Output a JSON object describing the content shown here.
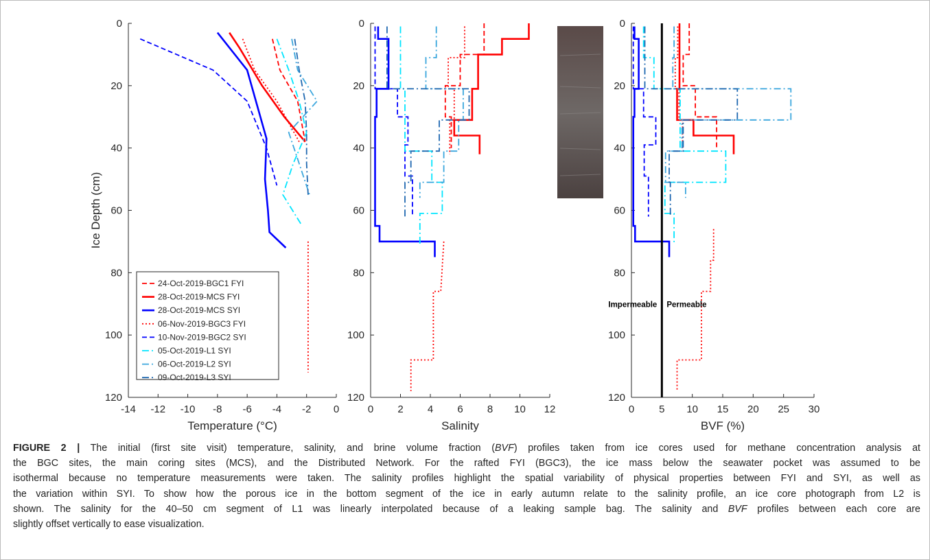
{
  "chart_data": [
    {
      "type": "line",
      "xlabel": "Temperature (°C)",
      "ylabel": "Ice Depth (cm)",
      "xlim": [
        -14,
        0
      ],
      "xticks": [
        -14,
        -12,
        -10,
        -8,
        -6,
        -4,
        -2,
        0
      ],
      "ylim": [
        0,
        120
      ],
      "yticks": [
        0,
        20,
        40,
        60,
        80,
        100,
        120
      ],
      "yreverse": true,
      "legend": "lower left",
      "series": [
        {
          "name": "24-Oct-2019-BGC1 FYI",
          "color": "#ff0000",
          "linestyle": "dash",
          "depth": [
            5,
            15,
            25,
            38
          ],
          "values": [
            -4.3,
            -3.8,
            -2.6,
            -2.1
          ]
        },
        {
          "name": "28-Oct-2019-MCS FYI",
          "color": "#ff0000",
          "linestyle": "solid",
          "depth": [
            3,
            8,
            20,
            30,
            38
          ],
          "values": [
            -7.2,
            -6.5,
            -5,
            -3.5,
            -2.1
          ]
        },
        {
          "name": "28-Oct-2019-MCS SYI",
          "color": "#0000ff",
          "linestyle": "solid",
          "depth": [
            3,
            15,
            37,
            50,
            60,
            67,
            72
          ],
          "values": [
            -8,
            -6,
            -4.7,
            -4.8,
            -4.6,
            -4.5,
            -3.4
          ]
        },
        {
          "name": "06-Nov-2019-BGC3 FYI",
          "color": "#ff0000",
          "linestyle": "dot",
          "depth": [
            5,
            15,
            25,
            38,
            null,
            70,
            112
          ],
          "values": [
            -6.3,
            -5.5,
            -4,
            -2.5,
            null,
            -1.9,
            -1.9
          ]
        },
        {
          "name": "10-Nov-2019-BGC2 SYI",
          "color": "#0000ff",
          "linestyle": "dash",
          "depth": [
            5,
            15,
            25,
            40,
            52
          ],
          "values": [
            -13.2,
            -8.3,
            -6,
            -4.7,
            -4
          ]
        },
        {
          "name": "05-Oct-2019-L1 SYI",
          "color": "#00e5ff",
          "linestyle": "dashdot",
          "depth": [
            5,
            15,
            25,
            35,
            45,
            55,
            65
          ],
          "values": [
            -4,
            -3.2,
            -2.5,
            -2,
            -2.9,
            -3.6,
            -2.3
          ]
        },
        {
          "name": "06-Oct-2019-L2 SYI",
          "color": "#3aa6dd",
          "linestyle": "dashdot",
          "depth": [
            5,
            15,
            25,
            35,
            45,
            55
          ],
          "values": [
            -3,
            -2.6,
            -1.3,
            -3.2,
            -2.5,
            -1.8
          ]
        },
        {
          "name": "09-Oct-2019-L3 SYI",
          "color": "#1f68b0",
          "linestyle": "dashdot",
          "depth": [
            5,
            15,
            25,
            35,
            45,
            55
          ],
          "values": [
            -2.8,
            -2.5,
            -2.1,
            -2,
            -2,
            -1.9
          ]
        }
      ]
    },
    {
      "type": "line",
      "xlabel": "Salinity",
      "xlim": [
        0,
        12
      ],
      "xticks": [
        0,
        2,
        4,
        6,
        8,
        10,
        12
      ],
      "ylim": [
        0,
        120
      ],
      "yticks": [
        0,
        20,
        40,
        60,
        80,
        100,
        120
      ],
      "yreverse": true,
      "series": [
        {
          "color": "#ff0000",
          "linestyle": "dash",
          "depth": [
            0,
            10,
            10,
            20,
            20,
            30,
            30,
            40
          ],
          "values": [
            7.6,
            7.6,
            6,
            6,
            5,
            5,
            5.4,
            5.4
          ]
        },
        {
          "color": "#ff0000",
          "linestyle": "solid",
          "depth": [
            0,
            5,
            5,
            10,
            10,
            21,
            21,
            31,
            31,
            36,
            36,
            42
          ],
          "values": [
            10.6,
            10.6,
            8.8,
            8.8,
            7.2,
            7.2,
            6.8,
            6.8,
            5.6,
            5.6,
            7.3,
            7.3
          ]
        },
        {
          "color": "#0000ff",
          "linestyle": "solid",
          "depth": [
            1,
            5,
            5,
            21,
            21,
            30,
            30,
            65,
            65,
            70,
            70,
            75
          ],
          "values": [
            0.5,
            0.5,
            1.2,
            1.2,
            0.4,
            0.4,
            0.3,
            0.3,
            0.6,
            0.6,
            4.3,
            4.3
          ]
        },
        {
          "color": "#ff0000",
          "linestyle": "dot",
          "depth": [
            1,
            11,
            11,
            21,
            21,
            31,
            31,
            42,
            null,
            70,
            86,
            86,
            108,
            108,
            118
          ],
          "values": [
            6.3,
            6.3,
            5.2,
            5.2,
            5.6,
            5.6,
            5.3,
            5.3,
            null,
            4.9,
            4.7,
            4.2,
            4.2,
            2.7,
            2.7
          ]
        },
        {
          "color": "#0000ff",
          "linestyle": "dash",
          "depth": [
            1,
            21,
            21,
            30,
            30,
            39,
            39,
            49,
            49,
            62
          ],
          "values": [
            0.3,
            0.3,
            1.8,
            1.8,
            2.5,
            2.5,
            2.3,
            2.3,
            2.8,
            2.8
          ]
        },
        {
          "color": "#00e5ff",
          "linestyle": "dashdot",
          "depth": [
            1,
            21,
            21,
            41,
            41,
            51,
            51,
            61,
            61,
            71
          ],
          "values": [
            2,
            2,
            2.3,
            2.3,
            4.1,
            4.1,
            4.8,
            4.8,
            3.3,
            3.3
          ]
        },
        {
          "color": "#3aa6dd",
          "linestyle": "dashdot",
          "depth": [
            1,
            11,
            11,
            21,
            21,
            31,
            31,
            41,
            41,
            51,
            51,
            56
          ],
          "values": [
            4.4,
            4.4,
            3.7,
            3.7,
            6.2,
            6.2,
            5.9,
            5.9,
            4.9,
            4.9,
            3.3,
            3.3
          ]
        },
        {
          "color": "#1f68b0",
          "linestyle": "dashdot",
          "depth": [
            1,
            21,
            21,
            31,
            31,
            41,
            41,
            51,
            51,
            62
          ],
          "values": [
            1.1,
            1.1,
            6.6,
            6.6,
            4.6,
            4.6,
            2.7,
            2.7,
            2.3,
            2.3
          ]
        }
      ]
    },
    {
      "type": "line",
      "xlabel": "BVF (%)",
      "xlim": [
        0,
        30
      ],
      "xticks": [
        0,
        5,
        10,
        15,
        20,
        25,
        30
      ],
      "ylim": [
        0,
        120
      ],
      "yticks": [
        0,
        20,
        40,
        60,
        80,
        100,
        120
      ],
      "yreverse": true,
      "threshold": 5,
      "annotations": [
        "Impermeable",
        "Permeable"
      ],
      "series": [
        {
          "color": "#ff0000",
          "linestyle": "dash",
          "depth": [
            0,
            10,
            10,
            20,
            20,
            30,
            30,
            40
          ],
          "values": [
            9.5,
            9.5,
            8.5,
            8.5,
            10.5,
            10.5,
            14,
            14
          ]
        },
        {
          "color": "#ff0000",
          "linestyle": "solid",
          "depth": [
            0,
            21,
            21,
            31,
            31,
            36,
            36,
            42
          ],
          "values": [
            7.9,
            7.9,
            7.5,
            7.5,
            10.2,
            10.2,
            16.8,
            16.8
          ]
        },
        {
          "color": "#0000ff",
          "linestyle": "solid",
          "depth": [
            1,
            5,
            5,
            21,
            21,
            30,
            30,
            65,
            65,
            70,
            70,
            75
          ],
          "values": [
            0.5,
            0.5,
            1.2,
            1.2,
            0.5,
            0.5,
            0.3,
            0.3,
            0.6,
            0.6,
            6.2,
            6.2
          ]
        },
        {
          "color": "#ff0000",
          "linestyle": "dot",
          "depth": [
            1,
            11,
            11,
            21,
            21,
            31,
            31,
            40,
            null,
            66,
            76,
            76,
            86,
            86,
            108,
            108,
            118
          ],
          "values": [
            7.6,
            7.6,
            7.2,
            7.2,
            7.8,
            7.8,
            8.4,
            8.4,
            null,
            13.5,
            13.5,
            13,
            13,
            11.5,
            11.5,
            7.5,
            7.5
          ]
        },
        {
          "color": "#0000ff",
          "linestyle": "dash",
          "depth": [
            1,
            21,
            21,
            30,
            30,
            39,
            39,
            49,
            49,
            62
          ],
          "values": [
            0.3,
            0.3,
            2,
            2,
            4,
            4,
            2.1,
            2.1,
            2.8,
            2.8
          ]
        },
        {
          "color": "#00e5ff",
          "linestyle": "dashdot",
          "depth": [
            1,
            11,
            11,
            21,
            21,
            41,
            41,
            51,
            51,
            61,
            61,
            71
          ],
          "values": [
            2,
            2,
            3.7,
            3.7,
            8,
            8,
            15.5,
            15.5,
            5.5,
            5.5,
            7,
            7
          ]
        },
        {
          "color": "#3aa6dd",
          "linestyle": "dashdot",
          "depth": [
            1,
            11,
            11,
            21,
            21,
            31,
            31,
            41,
            41,
            51,
            51,
            56
          ],
          "values": [
            7,
            7,
            6.8,
            6.8,
            26.2,
            26.2,
            8.3,
            8.3,
            5.6,
            5.6,
            8.9,
            8.9
          ]
        },
        {
          "color": "#1f68b0",
          "linestyle": "dashdot",
          "depth": [
            1,
            21,
            21,
            31,
            31,
            41,
            41,
            51,
            51,
            62
          ],
          "values": [
            2.2,
            2.2,
            17.4,
            17.4,
            8.5,
            8.5,
            6.2,
            6.2,
            6.4,
            6.4
          ]
        }
      ]
    }
  ],
  "caption": {
    "label": "FIGURE 2 |",
    "lines": [
      [
        "The initial (first site visit) temperature, salinity, and brine volume fraction (",
        "BVF",
        ") profiles taken from ice cores used for methane concentration analysis at"
      ],
      [
        "the BGC sites, the main coring sites (MCS), and the Distributed Network. For the rafted FYI (BGC3), the ice mass below the seawater pocket was assumed to be"
      ],
      [
        "isothermal because no temperature measurements were taken. The salinity profiles highlight the spatial variability of physical properties between FYI and SYI, as well as"
      ],
      [
        "the variation within SYI. To show how the porous ice in the bottom segment of the ice in early autumn relate to the salinity profile, an ice core photograph from L2 is"
      ],
      [
        "shown. The salinity for the 40–50 cm segment of L1 was linearly interpolated because of a leaking sample bag. The salinity and ",
        "BVF",
        " profiles between each core are"
      ],
      [
        "slightly offset vertically to ease visualization."
      ]
    ]
  }
}
